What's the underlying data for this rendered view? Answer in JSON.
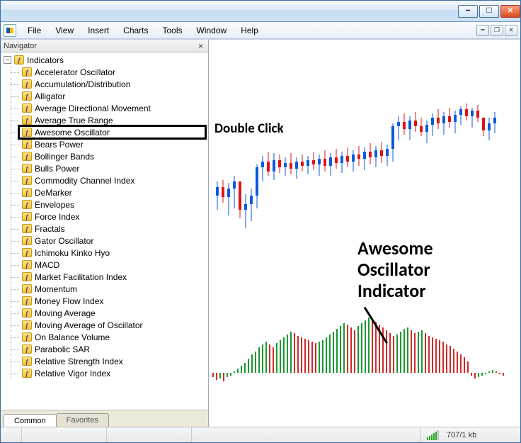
{
  "window": {
    "minimize_tip": "Minimize",
    "maximize_tip": "Maximize",
    "close_tip": "Close"
  },
  "menubar": {
    "items": [
      "File",
      "View",
      "Insert",
      "Charts",
      "Tools",
      "Window",
      "Help"
    ]
  },
  "navigator": {
    "title": "Navigator",
    "root_label": "Indicators",
    "highlighted_index": 5,
    "indicators": [
      "Accelerator Oscillator",
      "Accumulation/Distribution",
      "Alligator",
      "Average Directional Movement",
      "Average True Range",
      "Awesome Oscillator",
      "Bears Power",
      "Bollinger Bands",
      "Bulls Power",
      "Commodity Channel Index",
      "DeMarker",
      "Envelopes",
      "Force Index",
      "Fractals",
      "Gator Oscillator",
      "Ichimoku Kinko Hyo",
      "MACD",
      "Market Facilitation Index",
      "Momentum",
      "Money Flow Index",
      "Moving Average",
      "Moving Average of Oscillator",
      "On Balance Volume",
      "Parabolic SAR",
      "Relative Strength Index",
      "Relative Vigor Index"
    ],
    "tabs": {
      "active": "Common",
      "inactive": "Favorites"
    }
  },
  "annotations": {
    "double_click": "Double Click",
    "indicator_title": "Awesome\nOscillator\nIndicator"
  },
  "chart": {
    "type": "candlestick",
    "background": "#ffffff",
    "up_color": "#0a5adf",
    "down_color": "#e11313",
    "wick_color_up": "#0a5adf",
    "wick_color_down": "#e11313",
    "y_range": [
      0,
      200
    ],
    "candles": [
      {
        "x": 10,
        "o": 140,
        "h": 120,
        "l": 160,
        "c": 128,
        "up": true
      },
      {
        "x": 18,
        "o": 128,
        "h": 118,
        "l": 150,
        "c": 142,
        "up": false
      },
      {
        "x": 26,
        "o": 142,
        "h": 122,
        "l": 168,
        "c": 130,
        "up": true
      },
      {
        "x": 34,
        "o": 130,
        "h": 112,
        "l": 158,
        "c": 120,
        "up": true
      },
      {
        "x": 42,
        "o": 120,
        "h": 138,
        "l": 172,
        "c": 160,
        "up": false
      },
      {
        "x": 50,
        "o": 160,
        "h": 138,
        "l": 186,
        "c": 152,
        "up": true
      },
      {
        "x": 58,
        "o": 152,
        "h": 130,
        "l": 176,
        "c": 140,
        "up": true
      },
      {
        "x": 66,
        "o": 140,
        "h": 96,
        "l": 158,
        "c": 100,
        "up": true
      },
      {
        "x": 74,
        "o": 100,
        "h": 84,
        "l": 120,
        "c": 92,
        "up": true
      },
      {
        "x": 82,
        "o": 92,
        "h": 78,
        "l": 112,
        "c": 106,
        "up": false
      },
      {
        "x": 90,
        "o": 106,
        "h": 80,
        "l": 118,
        "c": 90,
        "up": true
      },
      {
        "x": 98,
        "o": 90,
        "h": 82,
        "l": 108,
        "c": 100,
        "up": false
      },
      {
        "x": 106,
        "o": 100,
        "h": 86,
        "l": 112,
        "c": 94,
        "up": true
      },
      {
        "x": 114,
        "o": 94,
        "h": 80,
        "l": 110,
        "c": 102,
        "up": false
      },
      {
        "x": 122,
        "o": 102,
        "h": 86,
        "l": 116,
        "c": 92,
        "up": true
      },
      {
        "x": 130,
        "o": 92,
        "h": 82,
        "l": 106,
        "c": 98,
        "up": false
      },
      {
        "x": 138,
        "o": 98,
        "h": 84,
        "l": 110,
        "c": 90,
        "up": true
      },
      {
        "x": 146,
        "o": 90,
        "h": 78,
        "l": 104,
        "c": 96,
        "up": false
      },
      {
        "x": 154,
        "o": 96,
        "h": 82,
        "l": 112,
        "c": 88,
        "up": true
      },
      {
        "x": 162,
        "o": 88,
        "h": 76,
        "l": 106,
        "c": 98,
        "up": false
      },
      {
        "x": 170,
        "o": 98,
        "h": 80,
        "l": 112,
        "c": 86,
        "up": true
      },
      {
        "x": 178,
        "o": 86,
        "h": 74,
        "l": 102,
        "c": 94,
        "up": false
      },
      {
        "x": 186,
        "o": 94,
        "h": 78,
        "l": 108,
        "c": 84,
        "up": true
      },
      {
        "x": 194,
        "o": 84,
        "h": 72,
        "l": 100,
        "c": 92,
        "up": false
      },
      {
        "x": 202,
        "o": 92,
        "h": 76,
        "l": 106,
        "c": 82,
        "up": true
      },
      {
        "x": 210,
        "o": 82,
        "h": 70,
        "l": 98,
        "c": 88,
        "up": false
      },
      {
        "x": 218,
        "o": 88,
        "h": 72,
        "l": 104,
        "c": 78,
        "up": true
      },
      {
        "x": 226,
        "o": 78,
        "h": 66,
        "l": 96,
        "c": 86,
        "up": false
      },
      {
        "x": 234,
        "o": 86,
        "h": 70,
        "l": 100,
        "c": 76,
        "up": true
      },
      {
        "x": 242,
        "o": 76,
        "h": 64,
        "l": 94,
        "c": 84,
        "up": false
      },
      {
        "x": 250,
        "o": 84,
        "h": 68,
        "l": 98,
        "c": 74,
        "up": true
      },
      {
        "x": 258,
        "o": 74,
        "h": 38,
        "l": 92,
        "c": 42,
        "up": true
      },
      {
        "x": 266,
        "o": 42,
        "h": 28,
        "l": 62,
        "c": 36,
        "up": true
      },
      {
        "x": 274,
        "o": 36,
        "h": 24,
        "l": 54,
        "c": 46,
        "up": false
      },
      {
        "x": 282,
        "o": 46,
        "h": 28,
        "l": 62,
        "c": 34,
        "up": true
      },
      {
        "x": 290,
        "o": 34,
        "h": 22,
        "l": 50,
        "c": 42,
        "up": false
      },
      {
        "x": 298,
        "o": 42,
        "h": 30,
        "l": 56,
        "c": 50,
        "up": false
      },
      {
        "x": 306,
        "o": 50,
        "h": 34,
        "l": 66,
        "c": 40,
        "up": true
      },
      {
        "x": 314,
        "o": 40,
        "h": 24,
        "l": 56,
        "c": 30,
        "up": true
      },
      {
        "x": 322,
        "o": 30,
        "h": 18,
        "l": 46,
        "c": 38,
        "up": false
      },
      {
        "x": 330,
        "o": 38,
        "h": 22,
        "l": 54,
        "c": 28,
        "up": true
      },
      {
        "x": 338,
        "o": 28,
        "h": 16,
        "l": 44,
        "c": 36,
        "up": false
      },
      {
        "x": 346,
        "o": 36,
        "h": 20,
        "l": 52,
        "c": 26,
        "up": true
      },
      {
        "x": 354,
        "o": 26,
        "h": 14,
        "l": 40,
        "c": 18,
        "up": true
      },
      {
        "x": 362,
        "o": 18,
        "h": 10,
        "l": 34,
        "c": 28,
        "up": false
      },
      {
        "x": 370,
        "o": 28,
        "h": 16,
        "l": 44,
        "c": 20,
        "up": true
      },
      {
        "x": 378,
        "o": 20,
        "h": 12,
        "l": 36,
        "c": 30,
        "up": false
      },
      {
        "x": 386,
        "o": 30,
        "h": 38,
        "l": 56,
        "c": 48,
        "up": false
      },
      {
        "x": 394,
        "o": 48,
        "h": 30,
        "l": 62,
        "c": 38,
        "up": true
      },
      {
        "x": 402,
        "o": 38,
        "h": 22,
        "l": 52,
        "c": 30,
        "up": true
      }
    ]
  },
  "oscillator": {
    "type": "histogram",
    "zero_y": 470,
    "bar_gap": 5,
    "x_start": 6,
    "up_color": "#149b2e",
    "down_color": "#d12a2a",
    "values": [
      -6,
      -10,
      -8,
      -12,
      -6,
      -4,
      2,
      6,
      10,
      14,
      20,
      26,
      30,
      36,
      40,
      44,
      40,
      36,
      42,
      46,
      50,
      54,
      58,
      56,
      52,
      50,
      48,
      46,
      44,
      42,
      44,
      46,
      50,
      54,
      58,
      62,
      66,
      70,
      68,
      64,
      60,
      66,
      70,
      74,
      78,
      76,
      72,
      68,
      64,
      60,
      56,
      52,
      54,
      58,
      62,
      64,
      60,
      56,
      58,
      60,
      56,
      52,
      50,
      48,
      46,
      44,
      40,
      38,
      34,
      30,
      26,
      22,
      16,
      -4,
      -8,
      -6,
      -4,
      -2,
      2,
      4,
      2,
      -2,
      -4
    ],
    "directions": [
      "d",
      "d",
      "u",
      "d",
      "u",
      "u",
      "u",
      "u",
      "u",
      "u",
      "u",
      "u",
      "u",
      "u",
      "u",
      "u",
      "d",
      "d",
      "u",
      "u",
      "u",
      "u",
      "u",
      "d",
      "d",
      "d",
      "d",
      "d",
      "d",
      "d",
      "u",
      "u",
      "u",
      "u",
      "u",
      "u",
      "u",
      "u",
      "d",
      "d",
      "d",
      "u",
      "u",
      "u",
      "u",
      "d",
      "d",
      "d",
      "d",
      "d",
      "d",
      "d",
      "u",
      "u",
      "u",
      "u",
      "d",
      "d",
      "u",
      "u",
      "d",
      "d",
      "d",
      "d",
      "d",
      "d",
      "d",
      "d",
      "d",
      "d",
      "d",
      "d",
      "d",
      "d",
      "d",
      "u",
      "u",
      "u",
      "u",
      "u",
      "d",
      "d",
      "d"
    ]
  },
  "statusbar": {
    "connection": "707/1 kb"
  },
  "colors": {
    "titlebar_border": "#3a6ea5",
    "highlight_box": "#000000"
  }
}
